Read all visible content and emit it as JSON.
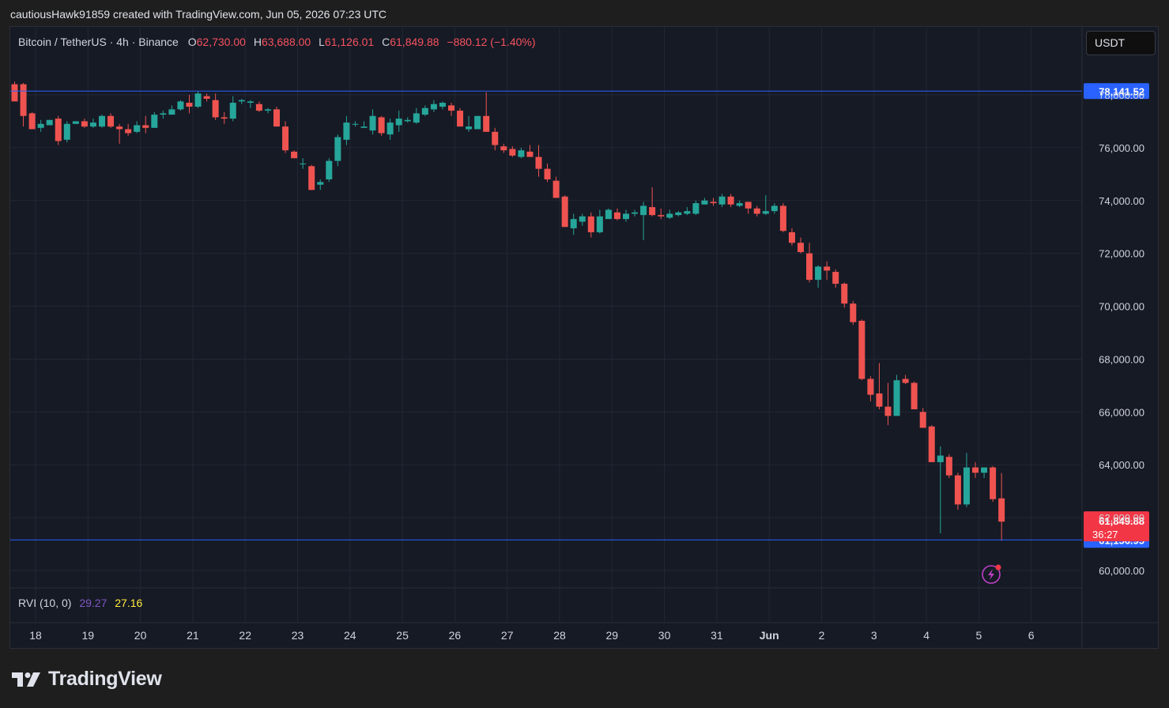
{
  "attribution": "cautiousHawk91859 created with TradingView.com, Jun 05, 2026 07:23 UTC",
  "legend": {
    "symbol": "Bitcoin / TetherUS · 4h · Binance",
    "o_label": "O",
    "o_value": "62,730.00",
    "h_label": "H",
    "h_value": "63,688.00",
    "l_label": "L",
    "l_value": "61,126.01",
    "c_label": "C",
    "c_value": "61,849.88",
    "change": "−880.12 (−1.40%)"
  },
  "currency_button": "USDT",
  "rvi": {
    "name": "RVI (10, 0)",
    "value1": "29.27",
    "value2": "27.16"
  },
  "brand": "TradingView",
  "colors": {
    "up": "#26a69a",
    "down": "#ef5350",
    "line": "#2962ff",
    "grid": "#232735",
    "rvi1": "#7e57c2",
    "rvi2": "#ffeb3b"
  },
  "icons": [
    "tradingview-logo-icon",
    "lightning-alert-icon"
  ],
  "chart_data": {
    "type": "candlestick",
    "symbol": "Bitcoin / TetherUS",
    "interval": "4h",
    "exchange": "Binance",
    "ylim": [
      59400,
      80300
    ],
    "y_ticks": [
      60000,
      62000,
      64000,
      66000,
      68000,
      70000,
      72000,
      74000,
      76000,
      78000
    ],
    "y_tick_labels": [
      "60,000.00",
      "62,000.00",
      "64,000.00",
      "66,000.00",
      "68,000.00",
      "70,000.00",
      "72,000.00",
      "74,000.00",
      "76,000.00",
      "78,000.00"
    ],
    "x_ticks": [
      "18",
      "19",
      "20",
      "21",
      "22",
      "23",
      "24",
      "25",
      "26",
      "27",
      "28",
      "29",
      "30",
      "31",
      "Jun",
      "2",
      "3",
      "4",
      "5",
      "6"
    ],
    "horizontal_lines": [
      {
        "price": 78141.52,
        "label": "78,141.52"
      },
      {
        "price": 61156.95,
        "label": "61,156.95"
      }
    ],
    "last_price": {
      "price": 61849.88,
      "label": "61,849.88",
      "countdown": "36:27"
    },
    "candles": [
      [
        78400,
        78500,
        77900,
        77750
      ],
      [
        78400,
        78450,
        76800,
        77200
      ],
      [
        77300,
        77350,
        76700,
        76700
      ],
      [
        76750,
        77050,
        76600,
        76900
      ],
      [
        76850,
        77050,
        76850,
        77050
      ],
      [
        77100,
        77200,
        76100,
        76250
      ],
      [
        76300,
        77000,
        76200,
        76900
      ],
      [
        76900,
        77000,
        76900,
        77000
      ],
      [
        77000,
        77100,
        76750,
        76800
      ],
      [
        76800,
        77100,
        76750,
        76950
      ],
      [
        76800,
        77250,
        76750,
        77200
      ],
      [
        77200,
        77300,
        76750,
        76800
      ],
      [
        76800,
        76900,
        76150,
        76700
      ],
      [
        76700,
        76900,
        76450,
        76550
      ],
      [
        76600,
        77000,
        76550,
        76850
      ],
      [
        76850,
        77200,
        76550,
        76750
      ],
      [
        76750,
        77350,
        76750,
        77250
      ],
      [
        77250,
        77400,
        77100,
        77300
      ],
      [
        77250,
        77600,
        77250,
        77450
      ],
      [
        77450,
        77800,
        77400,
        77750
      ],
      [
        77700,
        78000,
        77300,
        77550
      ],
      [
        77550,
        78150,
        77500,
        78050
      ],
      [
        77950,
        78050,
        77750,
        77850
      ],
      [
        77800,
        78050,
        77050,
        77150
      ],
      [
        77150,
        77350,
        76900,
        77100
      ],
      [
        77100,
        77950,
        77000,
        77700
      ],
      [
        77750,
        77850,
        77650,
        77800
      ],
      [
        77700,
        77800,
        77500,
        77750
      ],
      [
        77650,
        77750,
        77350,
        77400
      ],
      [
        77400,
        77500,
        77300,
        77450
      ],
      [
        77450,
        77550,
        76800,
        76800
      ],
      [
        76800,
        77000,
        75800,
        75900
      ],
      [
        75850,
        75900,
        75600,
        75600
      ],
      [
        75400,
        75600,
        75200,
        75400
      ],
      [
        75300,
        75350,
        74400,
        74400
      ],
      [
        74600,
        74800,
        74400,
        74700
      ],
      [
        74800,
        75600,
        74700,
        75500
      ],
      [
        75500,
        76500,
        75300,
        76400
      ],
      [
        76300,
        77200,
        76100,
        76950
      ],
      [
        76900,
        77000,
        76800,
        76900
      ],
      [
        76750,
        77000,
        76750,
        76800
      ],
      [
        76650,
        77450,
        76500,
        77200
      ],
      [
        77150,
        77200,
        76450,
        76550
      ],
      [
        76500,
        77100,
        76300,
        76950
      ],
      [
        76850,
        77400,
        76600,
        77100
      ],
      [
        77000,
        77150,
        76950,
        77050
      ],
      [
        76950,
        77500,
        76900,
        77300
      ],
      [
        77250,
        77600,
        77200,
        77500
      ],
      [
        77450,
        77800,
        77350,
        77650
      ],
      [
        77550,
        77750,
        77450,
        77700
      ],
      [
        77600,
        77700,
        77200,
        77400
      ],
      [
        77400,
        77500,
        76800,
        76800
      ],
      [
        76700,
        77200,
        76600,
        76800
      ],
      [
        76700,
        77200,
        76700,
        77200
      ],
      [
        77200,
        78100,
        76600,
        76600
      ],
      [
        76600,
        76750,
        75900,
        76100
      ],
      [
        76050,
        76150,
        75800,
        75900
      ],
      [
        75950,
        76050,
        75650,
        75700
      ],
      [
        75650,
        76000,
        75600,
        75900
      ],
      [
        75850,
        76100,
        75650,
        75650
      ],
      [
        75650,
        76100,
        74900,
        75200
      ],
      [
        75200,
        75400,
        74700,
        74800
      ],
      [
        74750,
        74900,
        74100,
        74100
      ],
      [
        74150,
        74200,
        73000,
        73000
      ],
      [
        72950,
        73500,
        72700,
        73300
      ],
      [
        73200,
        73500,
        73050,
        73400
      ],
      [
        73400,
        73550,
        72600,
        72800
      ],
      [
        72800,
        73650,
        72750,
        73400
      ],
      [
        73300,
        73700,
        73350,
        73650
      ],
      [
        73550,
        73700,
        73250,
        73300
      ],
      [
        73300,
        73650,
        73200,
        73500
      ],
      [
        73500,
        73650,
        73400,
        73550
      ],
      [
        73450,
        73950,
        72500,
        73800
      ],
      [
        73750,
        74500,
        73400,
        73450
      ],
      [
        73450,
        73700,
        73300,
        73400
      ],
      [
        73350,
        73650,
        73300,
        73500
      ],
      [
        73450,
        73600,
        73400,
        73550
      ],
      [
        73500,
        73750,
        73450,
        73600
      ],
      [
        73500,
        74000,
        73450,
        73900
      ],
      [
        73850,
        74100,
        73850,
        74000
      ],
      [
        73950,
        74100,
        73800,
        73900
      ],
      [
        73850,
        74250,
        73750,
        74150
      ],
      [
        74150,
        74250,
        73750,
        73850
      ],
      [
        73800,
        74000,
        73750,
        73900
      ],
      [
        73950,
        73950,
        73500,
        73700
      ],
      [
        73700,
        73800,
        73400,
        73500
      ],
      [
        73500,
        74200,
        73450,
        73600
      ],
      [
        73600,
        73900,
        73500,
        73800
      ],
      [
        73800,
        73900,
        72800,
        72850
      ],
      [
        72800,
        72950,
        72300,
        72400
      ],
      [
        72400,
        72600,
        72000,
        72050
      ],
      [
        72000,
        72400,
        70900,
        71000
      ],
      [
        71000,
        71550,
        70700,
        71500
      ],
      [
        71500,
        71700,
        71000,
        71350
      ],
      [
        71300,
        71400,
        70700,
        70850
      ],
      [
        70850,
        70900,
        69950,
        70100
      ],
      [
        70100,
        70200,
        69300,
        69400
      ],
      [
        69450,
        69500,
        67200,
        67250
      ],
      [
        67250,
        67350,
        66400,
        66650
      ],
      [
        66700,
        67850,
        66100,
        66200
      ],
      [
        66200,
        67100,
        65500,
        65850
      ],
      [
        65850,
        67400,
        65850,
        67200
      ],
      [
        67250,
        67400,
        67050,
        67100
      ],
      [
        67100,
        67150,
        66100,
        66100
      ],
      [
        66000,
        66150,
        65400,
        65400
      ],
      [
        65450,
        65500,
        64100,
        64100
      ],
      [
        64100,
        64700,
        61400,
        64350
      ],
      [
        64300,
        64400,
        63500,
        63600
      ],
      [
        63600,
        63700,
        62300,
        62500
      ],
      [
        62500,
        64450,
        62400,
        63900
      ],
      [
        63900,
        64100,
        63500,
        63700
      ],
      [
        63700,
        63900,
        63500,
        63900
      ],
      [
        63900,
        63950,
        62600,
        62700
      ],
      [
        62730,
        63688,
        61126,
        61849.88
      ]
    ]
  }
}
